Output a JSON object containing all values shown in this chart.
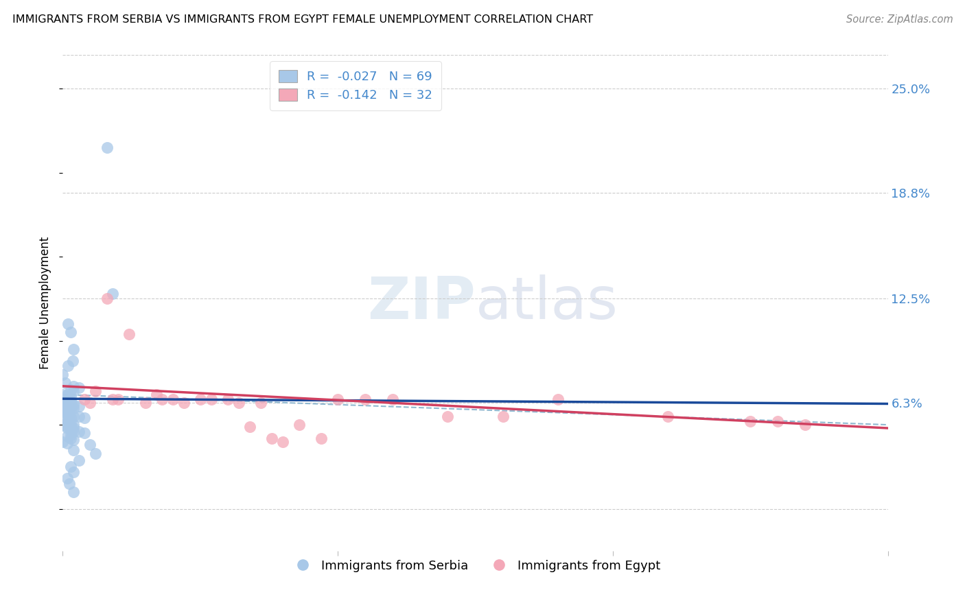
{
  "title": "IMMIGRANTS FROM SERBIA VS IMMIGRANTS FROM EGYPT FEMALE UNEMPLOYMENT CORRELATION CHART",
  "source": "Source: ZipAtlas.com",
  "ylabel": "Female Unemployment",
  "y_tick_values": [
    0.0,
    0.063,
    0.125,
    0.188,
    0.25
  ],
  "y_tick_labels": [
    "",
    "6.3%",
    "12.5%",
    "18.8%",
    "25.0%"
  ],
  "xlim": [
    0.0,
    0.15
  ],
  "ylim": [
    -0.025,
    0.27
  ],
  "legend_r1": "-0.027",
  "legend_n1": "69",
  "legend_r2": "-0.142",
  "legend_n2": "32",
  "serbia_color": "#a8c8e8",
  "egypt_color": "#f4a8b8",
  "serbia_line_color": "#1a4a9a",
  "egypt_line_color": "#d04060",
  "dashed_line_color": "#90b8d0",
  "serbia_x": [
    0.008,
    0.009,
    0.001,
    0.0015,
    0.002,
    0.0018,
    0.001,
    0.0,
    0.0005,
    0.002,
    0.003,
    0.0015,
    0.002,
    0.0008,
    0.0,
    0.0008,
    0.0015,
    0.0,
    0.0008,
    0.0015,
    0.0008,
    0.0015,
    0.0008,
    0.0,
    0.0008,
    0.002,
    0.003,
    0.002,
    0.0015,
    0.0008,
    0.0,
    0.0,
    0.0008,
    0.0012,
    0.0008,
    0.0008,
    0.0012,
    0.002,
    0.003,
    0.004,
    0.0015,
    0.0008,
    0.0008,
    0.0015,
    0.002,
    0.0,
    0.0008,
    0.0015,
    0.0008,
    0.002,
    0.0015,
    0.003,
    0.002,
    0.004,
    0.0015,
    0.0008,
    0.0015,
    0.002,
    0.0,
    0.0008,
    0.005,
    0.002,
    0.006,
    0.003,
    0.0015,
    0.002,
    0.0008,
    0.0012,
    0.002
  ],
  "serbia_y": [
    0.215,
    0.128,
    0.11,
    0.105,
    0.095,
    0.088,
    0.085,
    0.08,
    0.075,
    0.073,
    0.072,
    0.071,
    0.07,
    0.068,
    0.068,
    0.067,
    0.067,
    0.065,
    0.065,
    0.064,
    0.063,
    0.063,
    0.062,
    0.062,
    0.062,
    0.062,
    0.061,
    0.06,
    0.06,
    0.059,
    0.059,
    0.058,
    0.058,
    0.057,
    0.057,
    0.056,
    0.056,
    0.055,
    0.055,
    0.054,
    0.054,
    0.053,
    0.052,
    0.051,
    0.05,
    0.05,
    0.049,
    0.049,
    0.048,
    0.048,
    0.047,
    0.046,
    0.046,
    0.045,
    0.044,
    0.043,
    0.042,
    0.041,
    0.04,
    0.039,
    0.038,
    0.035,
    0.033,
    0.029,
    0.025,
    0.022,
    0.018,
    0.015,
    0.01
  ],
  "egypt_x": [
    0.004,
    0.005,
    0.006,
    0.008,
    0.009,
    0.01,
    0.012,
    0.015,
    0.017,
    0.018,
    0.02,
    0.022,
    0.025,
    0.027,
    0.03,
    0.032,
    0.034,
    0.036,
    0.038,
    0.04,
    0.043,
    0.047,
    0.05,
    0.055,
    0.06,
    0.07,
    0.08,
    0.09,
    0.11,
    0.125,
    0.13,
    0.135
  ],
  "egypt_y": [
    0.065,
    0.063,
    0.07,
    0.125,
    0.065,
    0.065,
    0.104,
    0.063,
    0.068,
    0.065,
    0.065,
    0.063,
    0.065,
    0.065,
    0.065,
    0.063,
    0.049,
    0.063,
    0.042,
    0.04,
    0.05,
    0.042,
    0.065,
    0.065,
    0.065,
    0.055,
    0.055,
    0.065,
    0.055,
    0.052,
    0.052,
    0.05
  ],
  "grid_color": "#cccccc",
  "axis_label_color": "#4488cc",
  "watermark_zip": "ZIP",
  "watermark_atlas": "atlas"
}
